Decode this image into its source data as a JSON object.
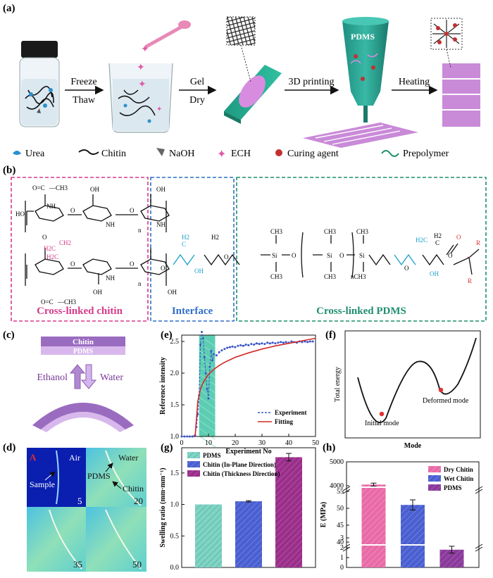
{
  "panel_a": {
    "label": "(a)",
    "steps": [
      {
        "line1": "Freeze",
        "line2": "Thaw"
      },
      {
        "line1": "Gel",
        "line2": "Dry"
      },
      {
        "line1": "3D printing",
        "line2": ""
      },
      {
        "line1": "Heating",
        "line2": ""
      }
    ],
    "nozzle_label": "PDMS",
    "legend": [
      "Urea",
      "Chitin",
      "NaOH",
      "ECH",
      "Curing agent",
      "Prepolymer"
    ]
  },
  "panel_b": {
    "label": "(b)",
    "regions": [
      "Cross-linked chitin",
      "Interface",
      "Cross-linked PDMS"
    ],
    "colors": {
      "chitin": "#d63a8a",
      "interface": "#2f6fc9",
      "pdms": "#1f8f6f",
      "linker": "#e25aa8",
      "cyan": "#1aa0c8",
      "red": "#e03030"
    },
    "atoms": {
      "o": "O",
      "oh": "OH",
      "ho": "HO",
      "h2c": "H2C",
      "ch2": "CH2",
      "ch3": "CH3",
      "si": "Si",
      "n": "n",
      "nh": "NH",
      "c": "C",
      "r": "R",
      "h2": "H2",
      "c_eq_o": "O=C",
      "ac": "—CH3",
      "nch3": "nCH3"
    }
  },
  "panel_c": {
    "label": "(c)",
    "top_layer": "Chitin",
    "bottom_layer": "PDMS",
    "left": "Ethanol",
    "right": "Water"
  },
  "panel_d": {
    "label": "(d)",
    "marker": "A",
    "tiles": [
      "5",
      "20",
      "35",
      "50"
    ],
    "annotations": {
      "air": "Air",
      "water": "Water",
      "sample": "Sample",
      "pdms": "PDMS",
      "chitin": "Chitin"
    }
  },
  "panel_e": {
    "label": "(e)"
  },
  "panel_f": {
    "label": "(f)",
    "ylabel": "Total energy",
    "xlabel": "Mode",
    "points": [
      "Initial mode",
      "Deformed mode"
    ]
  },
  "panel_g": {
    "label": "(g)"
  },
  "panel_h": {
    "label": "(h)"
  },
  "chart_data": [
    {
      "type": "line",
      "panel": "e",
      "xlabel": "Experiment No",
      "ylabel": "Reference intensity",
      "xlim": [
        0,
        50
      ],
      "ylim": [
        1.0,
        2.6
      ],
      "xticks": [
        0,
        10,
        20,
        30,
        40,
        50
      ],
      "yticks": [
        1.0,
        1.5,
        2.0,
        2.5
      ],
      "shaded_x": [
        6.5,
        12.5
      ],
      "series": [
        {
          "name": "Experiment",
          "style": "dashed-markers",
          "color": "#3a55c8",
          "x": [
            0,
            1,
            2,
            3,
            4,
            5,
            5.5,
            6,
            6.5,
            7,
            7.5,
            8,
            8.5,
            9,
            9.5,
            10,
            10.5,
            11,
            11.5,
            12,
            13,
            14,
            15,
            16,
            17,
            18,
            19,
            20,
            21,
            22,
            23,
            24,
            25,
            26,
            27,
            28,
            29,
            30,
            31,
            32,
            33,
            34,
            35,
            36,
            37,
            38,
            39,
            40,
            41,
            42,
            43,
            44,
            45,
            46,
            47,
            48,
            49
          ],
          "y": [
            1.0,
            1.0,
            1.0,
            1.0,
            1.0,
            1.02,
            1.15,
            1.35,
            1.65,
            2.45,
            2.65,
            2.55,
            2.25,
            2.0,
            1.75,
            1.6,
            2.1,
            2.35,
            2.2,
            2.3,
            2.28,
            2.33,
            2.36,
            2.38,
            2.4,
            2.41,
            2.42,
            2.41,
            2.43,
            2.44,
            2.43,
            2.45,
            2.44,
            2.46,
            2.45,
            2.47,
            2.46,
            2.47,
            2.46,
            2.48,
            2.47,
            2.48,
            2.47,
            2.48,
            2.49,
            2.48,
            2.49,
            2.48,
            2.5,
            2.49,
            2.48,
            2.5,
            2.49,
            2.5,
            2.49,
            2.5,
            2.5
          ]
        },
        {
          "name": "Fitting",
          "style": "solid",
          "color": "#d22828",
          "x": [
            5,
            6,
            7,
            8,
            9,
            10,
            12,
            14,
            16,
            18,
            20,
            25,
            30,
            35,
            40,
            45,
            50
          ],
          "y": [
            1.0,
            1.55,
            1.75,
            1.85,
            1.92,
            1.98,
            2.06,
            2.12,
            2.17,
            2.21,
            2.25,
            2.32,
            2.38,
            2.43,
            2.47,
            2.51,
            2.55
          ]
        }
      ]
    },
    {
      "type": "bar",
      "panel": "g",
      "ylabel": "Swelling ratio (mm·mm⁻¹)",
      "ylim": [
        0.0,
        1.9
      ],
      "yticks": [
        0.0,
        0.5,
        1.0,
        1.5
      ],
      "series": [
        {
          "name": "PDMS",
          "value": 1.0,
          "error": 0.0,
          "color": "#7fd4c4"
        },
        {
          "name": "Chitin (In-Plane Direction)",
          "value": 1.05,
          "error": 0.01,
          "color": "#4a5fd0"
        },
        {
          "name": "Chitin (Thickness Direction)",
          "value": 1.75,
          "error": 0.06,
          "color": "#9a2f8a"
        }
      ]
    },
    {
      "type": "bar",
      "panel": "h",
      "ylabel": "E (MPa)",
      "broken_axis": true,
      "yticks_top": [
        4000,
        5000
      ],
      "yticks_mid": [
        40,
        45,
        50,
        55
      ],
      "yticks_low": [
        0,
        1,
        2,
        3
      ],
      "series": [
        {
          "name": "Dry Chitin",
          "value": 4050,
          "error": 60,
          "color": "#e86aa6"
        },
        {
          "name": "Wet Chitin",
          "value": 51,
          "error": 1.5,
          "color": "#4a5fd0"
        },
        {
          "name": "PDMS",
          "value": 1.8,
          "error": 0.35,
          "color": "#8a3a9a"
        }
      ]
    }
  ]
}
